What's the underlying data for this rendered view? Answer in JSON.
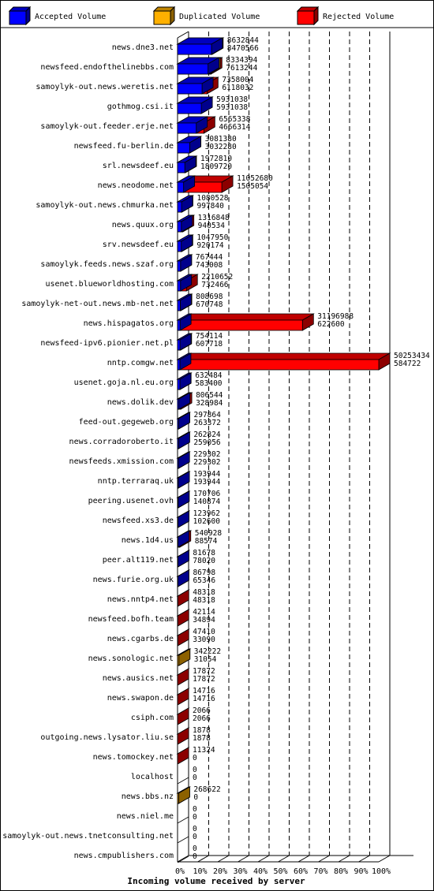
{
  "chart_data": {
    "type": "bar",
    "orientation": "horizontal",
    "stacked": true,
    "xlabel": "Incoming volume received by server",
    "x_ticks": [
      "0%",
      "10%",
      "20%",
      "30%",
      "40%",
      "50%",
      "60%",
      "70%",
      "80%",
      "90%",
      "100%"
    ],
    "legend_position": "top",
    "series": [
      {
        "name": "Accepted Volume",
        "color": "#0000ff"
      },
      {
        "name": "Duplicated Volume",
        "color": "#ffb000"
      },
      {
        "name": "Rejected Volume",
        "color": "#ff0000"
      }
    ],
    "servers": [
      {
        "name": "news.dne3.net",
        "total": 8632844,
        "accepted": 8470566,
        "duplicated": 0
      },
      {
        "name": "newsfeed.endofthelinebbs.com",
        "total": 8334394,
        "accepted": 7613244,
        "duplicated": 300000
      },
      {
        "name": "samoylyk-out.news.weretis.net",
        "total": 7358004,
        "accepted": 6118032,
        "duplicated": 0
      },
      {
        "name": "gothmog.csi.it",
        "total": 5931038,
        "accepted": 5931038,
        "duplicated": 0
      },
      {
        "name": "samoylyk-out.feeder.erje.net",
        "total": 6565338,
        "accepted": 4666314,
        "duplicated": 0
      },
      {
        "name": "newsfeed.fu-berlin.de",
        "total": 3081380,
        "accepted": 3032280,
        "duplicated": 0
      },
      {
        "name": "srl.newsdeef.eu",
        "total": 1972810,
        "accepted": 1809720,
        "duplicated": 0
      },
      {
        "name": "news.neodome.net",
        "total": 11052680,
        "accepted": 1505054,
        "duplicated": 0
      },
      {
        "name": "samoylyk-out.news.chmurka.net",
        "total": 1080528,
        "accepted": 997840,
        "duplicated": 0
      },
      {
        "name": "news.quux.org",
        "total": 1316848,
        "accepted": 940534,
        "duplicated": 0
      },
      {
        "name": "srv.newsdeef.eu",
        "total": 1047950,
        "accepted": 920174,
        "duplicated": 0
      },
      {
        "name": "samoylyk.feeds.news.szaf.org",
        "total": 767444,
        "accepted": 743008,
        "duplicated": 0
      },
      {
        "name": "usenet.blueworldhosting.com",
        "total": 2210652,
        "accepted": 732466,
        "duplicated": 0
      },
      {
        "name": "samoylyk-net-out.news.mb-net.net",
        "total": 808698,
        "accepted": 670748,
        "duplicated": 0
      },
      {
        "name": "news.hispagatos.org",
        "total": 31196988,
        "accepted": 622600,
        "duplicated": 0
      },
      {
        "name": "newsfeed-ipv6.pionier.net.pl",
        "total": 754114,
        "accepted": 607718,
        "duplicated": 0
      },
      {
        "name": "nntp.comgw.net",
        "total": 50253434,
        "accepted": 584722,
        "duplicated": 0
      },
      {
        "name": "usenet.goja.nl.eu.org",
        "total": 632484,
        "accepted": 583400,
        "duplicated": 0
      },
      {
        "name": "news.dolik.dev",
        "total": 806544,
        "accepted": 328984,
        "duplicated": 0
      },
      {
        "name": "feed-out.gegeweb.org",
        "total": 297864,
        "accepted": 263372,
        "duplicated": 0
      },
      {
        "name": "news.corradoroberto.it",
        "total": 262824,
        "accepted": 259056,
        "duplicated": 3768
      },
      {
        "name": "newsfeeds.xmission.com",
        "total": 229302,
        "accepted": 229302,
        "duplicated": 0
      },
      {
        "name": "nntp.terraraq.uk",
        "total": 193944,
        "accepted": 193944,
        "duplicated": 0
      },
      {
        "name": "peering.usenet.ovh",
        "total": 170706,
        "accepted": 140874,
        "duplicated": 0
      },
      {
        "name": "newsfeed.xs3.de",
        "total": 123962,
        "accepted": 102600,
        "duplicated": 21362
      },
      {
        "name": "news.1d4.us",
        "total": 540928,
        "accepted": 88574,
        "duplicated": 0
      },
      {
        "name": "peer.alt119.net",
        "total": 81678,
        "accepted": 78020,
        "duplicated": 3658
      },
      {
        "name": "news.furie.org.uk",
        "total": 86798,
        "accepted": 65346,
        "duplicated": 21452
      },
      {
        "name": "news.nntp4.net",
        "total": 48318,
        "accepted": 48318,
        "duplicated": 0
      },
      {
        "name": "newsfeed.bofh.team",
        "total": 42114,
        "accepted": 34894,
        "duplicated": 0
      },
      {
        "name": "news.cgarbs.de",
        "total": 47410,
        "accepted": 33090,
        "duplicated": 0
      },
      {
        "name": "news.sonologic.net",
        "total": 342222,
        "accepted": 31054,
        "duplicated": 311168
      },
      {
        "name": "news.ausics.net",
        "total": 17872,
        "accepted": 17872,
        "duplicated": 0
      },
      {
        "name": "news.swapon.de",
        "total": 14716,
        "accepted": 14716,
        "duplicated": 0
      },
      {
        "name": "csiph.com",
        "total": 2066,
        "accepted": 2066,
        "duplicated": 0
      },
      {
        "name": "outgoing.news.lysator.liu.se",
        "total": 1878,
        "accepted": 1878,
        "duplicated": 0
      },
      {
        "name": "news.tomockey.net",
        "total": 11324,
        "accepted": 0,
        "duplicated": 0
      },
      {
        "name": "localhost",
        "total": 0,
        "accepted": 0,
        "duplicated": 0
      },
      {
        "name": "news.bbs.nz",
        "total": 268622,
        "accepted": 0,
        "duplicated": 268622
      },
      {
        "name": "news.niel.me",
        "total": 0,
        "accepted": 0,
        "duplicated": 0
      },
      {
        "name": "samoylyk-out.news.tnetconsulting.net",
        "total": 0,
        "accepted": 0,
        "duplicated": 0
      },
      {
        "name": "news.cmpublishers.com",
        "total": 0,
        "accepted": 0,
        "duplicated": 0
      }
    ]
  }
}
